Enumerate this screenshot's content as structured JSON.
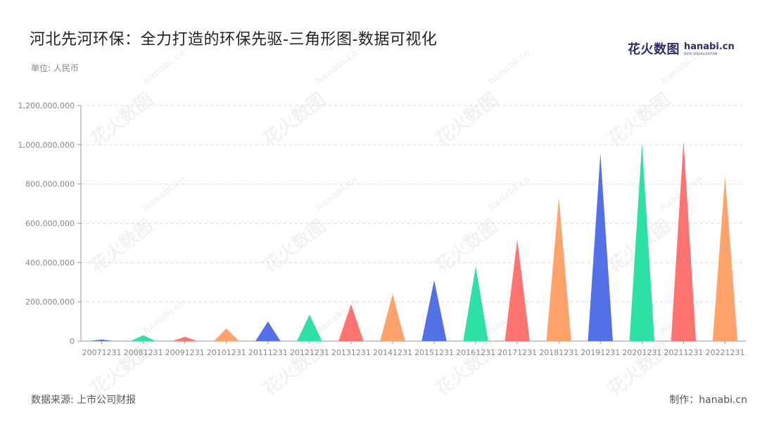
{
  "header": {
    "title": "河北先河环保：全力打造的环保先驱-三角形图-数据可视化",
    "unit": "单位: 人民币"
  },
  "logo": {
    "cn_text": "花火数图",
    "en_text": "hanabi.cn",
    "en_sub": "DATA VISUALIZATION",
    "watermark_cn": "花火数图",
    "watermark_en": "hanabi.cn"
  },
  "footer": {
    "source": "数据来源: 上市公司财报",
    "credit": "制作：hanabi.cn"
  },
  "colors": [
    "#5470e6",
    "#2de0a5",
    "#ff7470",
    "#ffa26c"
  ],
  "chart_data": {
    "type": "bar",
    "shape": "triangle",
    "categories": [
      "20071231",
      "20081231",
      "20091231",
      "20101231",
      "20111231",
      "20121231",
      "20131231",
      "20141231",
      "20151231",
      "20161231",
      "20171231",
      "20181231",
      "20191231",
      "20201231",
      "20211231",
      "20221231"
    ],
    "values": [
      8000000,
      30000000,
      22000000,
      64000000,
      100000000,
      135000000,
      188000000,
      240000000,
      310000000,
      380000000,
      518000000,
      728000000,
      955000000,
      1010000000,
      1020000000,
      838000000
    ],
    "ylim": [
      0,
      1200000000
    ],
    "yticks": [
      0,
      200000000,
      400000000,
      600000000,
      800000000,
      1000000000,
      1200000000
    ],
    "ytick_labels": [
      "0",
      "200,000,000",
      "400,000,000",
      "600,000,000",
      "800,000,000",
      "1,000,000,000",
      "1,200,000,000"
    ],
    "grid": true,
    "xlabel": "",
    "ylabel": ""
  }
}
